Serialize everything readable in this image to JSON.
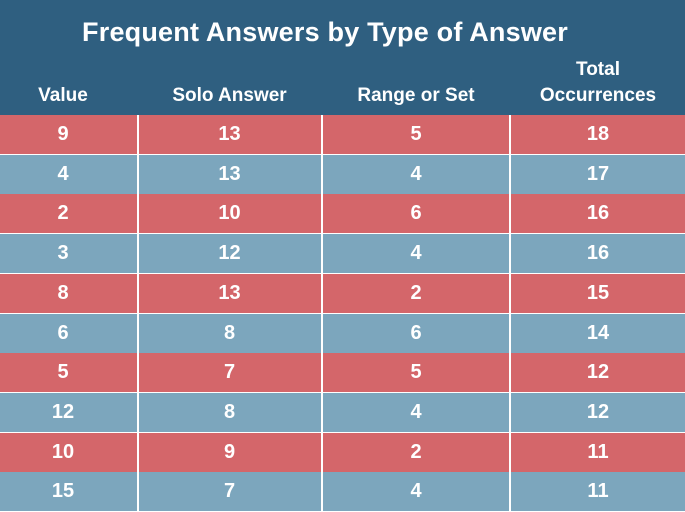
{
  "chart_data": {
    "type": "table",
    "title": "Frequent Answers by Type of Answer",
    "columns": [
      "Value",
      "Solo Answer",
      "Range or Set",
      "Total\nOccurrences"
    ],
    "rows": [
      [
        "9",
        "13",
        "5",
        "18"
      ],
      [
        "4",
        "13",
        "4",
        "17"
      ],
      [
        "2",
        "10",
        "6",
        "16"
      ],
      [
        "3",
        "12",
        "4",
        "16"
      ],
      [
        "8",
        "13",
        "2",
        "15"
      ],
      [
        "6",
        "8",
        "6",
        "14"
      ],
      [
        "5",
        "7",
        "5",
        "12"
      ],
      [
        "12",
        "8",
        "4",
        "12"
      ],
      [
        "10",
        "9",
        "2",
        "11"
      ],
      [
        "15",
        "7",
        "4",
        "11"
      ]
    ]
  },
  "colors": {
    "header_bg": "#2f5f80",
    "row_odd_bg": "#d4666a",
    "row_even_bg": "#7ca6bd",
    "text": "#ffffff",
    "divider": "#ffffff"
  }
}
